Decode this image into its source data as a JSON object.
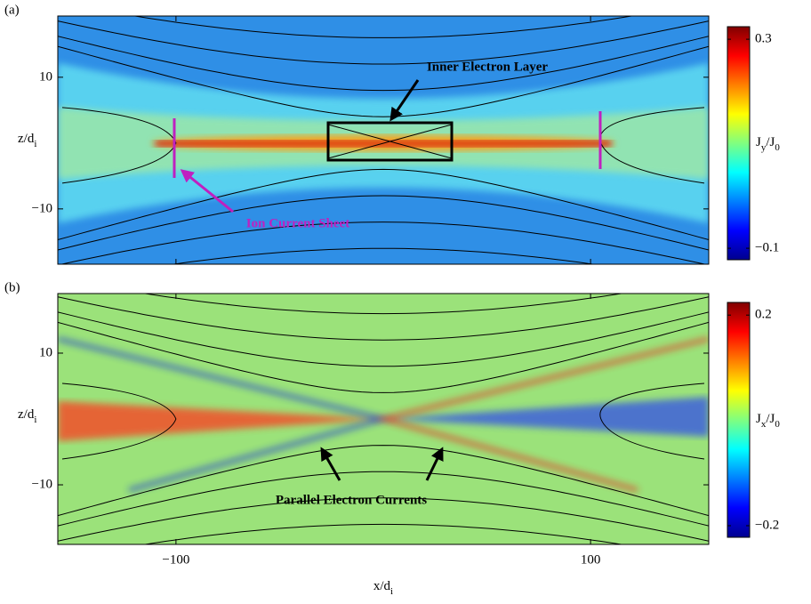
{
  "chart_data": [
    {
      "type": "heatmap",
      "panel_label": "(a)",
      "xlim": [
        -157,
        157
      ],
      "ylim": [
        -18.4,
        19.3
      ],
      "xticks": [
        -100,
        100
      ],
      "yticks": [
        10,
        {
          "value": -10,
          "label": "−10"
        }
      ],
      "ylabel": [
        [
          "z/d",
          "i"
        ]
      ],
      "colorbar": {
        "lim": [
          -0.122,
          0.324
        ],
        "ticks": [
          0.3,
          {
            "value": -0.1,
            "label": "−0.1"
          }
        ],
        "label": [
          [
            "J",
            "y"
          ],
          [
            "/J",
            "0"
          ]
        ]
      },
      "annotations": [
        "Inner Electron Layer",
        "Ion Current Sheet"
      ]
    },
    {
      "type": "heatmap",
      "panel_label": "(b)",
      "xlim": [
        -157,
        157
      ],
      "ylim": [
        -19.05,
        19.05
      ],
      "xticks": [
        {
          "value": -100,
          "label": "−100"
        },
        100
      ],
      "yticks": [
        10,
        {
          "value": -10,
          "label": "−10"
        }
      ],
      "xlabel": [
        [
          "x/d",
          "i"
        ]
      ],
      "ylabel": [
        [
          "z/d",
          "i"
        ]
      ],
      "colorbar": {
        "lim": [
          -0.222,
          0.224
        ],
        "ticks": [
          0.2,
          {
            "value": -0.2,
            "label": "−0.2"
          }
        ],
        "label": [
          [
            "J",
            "x"
          ],
          [
            "/J",
            "0"
          ]
        ]
      },
      "annotations": [
        "Parallel Electron Currents"
      ]
    }
  ]
}
